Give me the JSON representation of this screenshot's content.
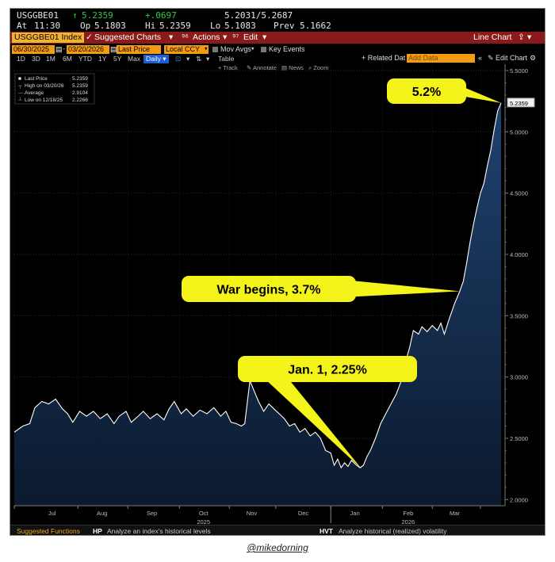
{
  "quote": {
    "ticker": "USGGBE01",
    "last": "5.2359",
    "change": "+.0697",
    "bid_ask": "5.2031/5.2687",
    "at_label": "At",
    "time": "11:30",
    "op_label": "Op",
    "open": "5.1803",
    "hi_label": "Hi",
    "high": "5.2359",
    "lo_label": "Lo",
    "low": "5.1083",
    "prev_label": "Prev",
    "prev": "5.1662"
  },
  "toolbar": {
    "security": "USGGBE01 Index",
    "suggested": "Suggested Charts",
    "actions": "Actions",
    "edit": "Edit",
    "chart_type": "Line Chart"
  },
  "params": {
    "start_date": "06/30/2025",
    "end_date": "03/20/2026",
    "field": "Last Price",
    "currency": "Local CCY",
    "mov_avgs": "Mov Avgs",
    "key_events": "Key Events",
    "related_label": "+ Related Dat",
    "related_placeholder": "Add Data",
    "edit_chart": "Edit Chart"
  },
  "periods": [
    "1D",
    "3D",
    "1M",
    "6M",
    "YTD",
    "1Y",
    "5Y",
    "Max"
  ],
  "frequency": "Daily",
  "table_label": "Table",
  "tools": [
    "Track",
    "Annotate",
    "News",
    "Zoom"
  ],
  "legend": {
    "last_label": "Last Price",
    "last_value": "5.2359",
    "high_label": "High on 03/20/26",
    "high_value": "5.2359",
    "avg_label": "Average",
    "avg_value": "2.9104",
    "low_label": "Low on 12/18/25",
    "low_value": "2.2266"
  },
  "chart_data": {
    "type": "area",
    "title": "",
    "xlabel": "",
    "ylabel": "",
    "ylim": [
      1.95,
      5.5
    ],
    "x_tick_labels": [
      "Jul",
      "Aug",
      "Sep",
      "Oct",
      "Nov",
      "Dec",
      "Jan",
      "Feb",
      "Mar"
    ],
    "x_year_labels": [
      "2025",
      "2026"
    ],
    "y_ticks": [
      "5.5000",
      "5.0000",
      "4.5000",
      "4.0000",
      "3.5000",
      "3.0000",
      "2.5000",
      "2.0000"
    ],
    "last_value_tag": "5.2359",
    "series": [
      {
        "values": [
          [
            0,
            2.55
          ],
          [
            5,
            2.6
          ],
          [
            9,
            2.62
          ],
          [
            12,
            2.75
          ],
          [
            16,
            2.8
          ],
          [
            20,
            2.78
          ],
          [
            24,
            2.82
          ],
          [
            28,
            2.74
          ],
          [
            31,
            2.7
          ],
          [
            34,
            2.63
          ],
          [
            38,
            2.72
          ],
          [
            42,
            2.68
          ],
          [
            46,
            2.72
          ],
          [
            50,
            2.66
          ],
          [
            54,
            2.7
          ],
          [
            58,
            2.62
          ],
          [
            61,
            2.68
          ],
          [
            65,
            2.72
          ],
          [
            68,
            2.63
          ],
          [
            72,
            2.68
          ],
          [
            75,
            2.72
          ],
          [
            79,
            2.66
          ],
          [
            83,
            2.7
          ],
          [
            87,
            2.65
          ],
          [
            90,
            2.74
          ],
          [
            93,
            2.8
          ],
          [
            97,
            2.7
          ],
          [
            100,
            2.74
          ],
          [
            104,
            2.68
          ],
          [
            108,
            2.73
          ],
          [
            112,
            2.7
          ],
          [
            116,
            2.75
          ],
          [
            120,
            2.68
          ],
          [
            123,
            2.72
          ],
          [
            126,
            2.63
          ],
          [
            129,
            2.62
          ],
          [
            132,
            2.6
          ],
          [
            134,
            2.62
          ],
          [
            137,
            2.97
          ],
          [
            139,
            2.9
          ],
          [
            142,
            2.8
          ],
          [
            145,
            2.72
          ],
          [
            148,
            2.78
          ],
          [
            151,
            2.74
          ],
          [
            154,
            2.7
          ],
          [
            157,
            2.66
          ],
          [
            160,
            2.6
          ],
          [
            163,
            2.62
          ],
          [
            166,
            2.55
          ],
          [
            169,
            2.58
          ],
          [
            172,
            2.52
          ],
          [
            175,
            2.55
          ],
          [
            178,
            2.5
          ],
          [
            181,
            2.4
          ],
          [
            184,
            2.38
          ],
          [
            186,
            2.28
          ],
          [
            188,
            2.33
          ],
          [
            190,
            2.26
          ],
          [
            192,
            2.3
          ],
          [
            194,
            2.27
          ],
          [
            196,
            2.32
          ],
          [
            199,
            2.28
          ],
          [
            201,
            2.26
          ],
          [
            203,
            2.28
          ],
          [
            205,
            2.35
          ],
          [
            207,
            2.4
          ],
          [
            210,
            2.5
          ],
          [
            213,
            2.62
          ],
          [
            216,
            2.7
          ],
          [
            219,
            2.78
          ],
          [
            222,
            2.86
          ],
          [
            225,
            2.97
          ],
          [
            227,
            3.1
          ],
          [
            230,
            3.25
          ],
          [
            232,
            3.38
          ],
          [
            235,
            3.35
          ],
          [
            237,
            3.41
          ],
          [
            240,
            3.37
          ],
          [
            243,
            3.42
          ],
          [
            246,
            3.38
          ],
          [
            248,
            3.44
          ],
          [
            250,
            3.35
          ],
          [
            253,
            3.48
          ],
          [
            256,
            3.6
          ],
          [
            259,
            3.7
          ],
          [
            261,
            3.78
          ],
          [
            263,
            3.93
          ],
          [
            265,
            4.1
          ],
          [
            267,
            4.25
          ],
          [
            269,
            4.38
          ],
          [
            271,
            4.5
          ],
          [
            273,
            4.58
          ],
          [
            275,
            4.72
          ],
          [
            277,
            4.85
          ],
          [
            279,
            5.02
          ],
          [
            281,
            5.17
          ],
          [
            283,
            5.2359
          ]
        ]
      }
    ],
    "annotations": [
      {
        "text": "5.2%",
        "x": 283,
        "y": 5.2359
      },
      {
        "text": "War begins, 3.7%",
        "x": 259,
        "y": 3.7
      },
      {
        "text": "Jan. 1, 2.25%",
        "x": 202,
        "y": 2.25
      }
    ],
    "grid": true,
    "legend_position": "top-left",
    "colors": {
      "line": "#ffffff",
      "fill_top": "#1c3a5e",
      "fill_bottom": "#0c1a2c",
      "callout": "#f4f41a"
    }
  },
  "footer": {
    "suggested_label": "Suggested Functions",
    "hp_code": "HP",
    "hp_text": "Analyze an index's historical levels",
    "hvt_code": "HVT",
    "hvt_text": "Analyze historical (realized) volatility"
  },
  "credit": "@mikedorning"
}
